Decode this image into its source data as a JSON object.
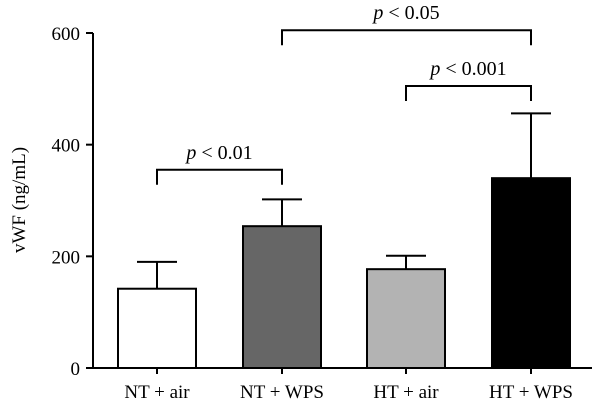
{
  "chart_data": {
    "type": "bar",
    "title": "",
    "xlabel": "",
    "ylabel": "vWF (ng/mL)",
    "ylim": [
      0,
      600
    ],
    "yticks": [
      0,
      200,
      400,
      600
    ],
    "grid": false,
    "legend": "none",
    "categories": [
      "NT + air",
      "NT + WPS",
      "HT + air",
      "HT + WPS"
    ],
    "values": [
      142,
      254,
      177,
      340
    ],
    "errors": [
      48,
      48,
      24,
      116
    ],
    "bar_colors": [
      "#ffffff",
      "#666666",
      "#b3b3b3",
      "#000000"
    ],
    "significance": [
      {
        "from": 0,
        "to": 1,
        "label": "p < 0.01",
        "bracket_y": 355
      },
      {
        "from": 2,
        "to": 3,
        "label": "p < 0.001",
        "bracket_y": 505
      },
      {
        "from": 1,
        "to": 3,
        "label": "p < 0.05",
        "bracket_y": 605
      }
    ]
  }
}
